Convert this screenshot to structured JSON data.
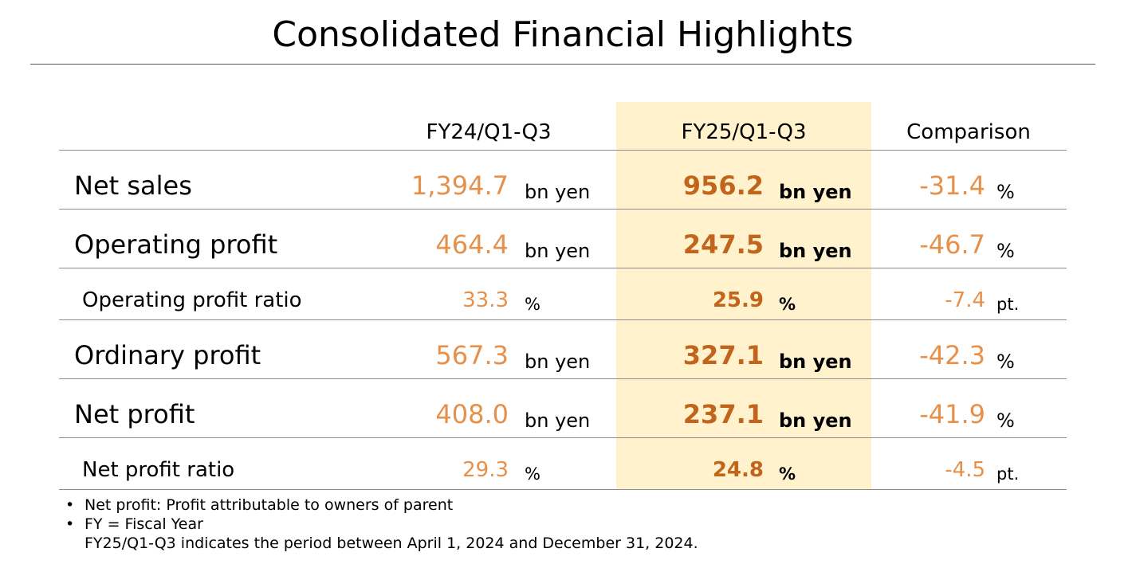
{
  "title": "Consolidated Financial Highlights",
  "columns": {
    "fy24": "FY24/Q1-Q3",
    "fy25": "FY25/Q1-Q3",
    "comparison": "Comparison"
  },
  "colors": {
    "value_orange": "#e6904a",
    "value_bold_orange": "#c0651b",
    "highlight_bg": "#fff2cc"
  },
  "rows": [
    {
      "label": "Net sales",
      "fy24": "1,394.7",
      "fy24_unit": "bn yen",
      "fy25": "956.2",
      "fy25_unit": "bn yen",
      "comparison": "-31.4",
      "comparison_unit": "%"
    },
    {
      "label": "Operating profit",
      "fy24": "464.4",
      "fy24_unit": "bn yen",
      "fy25": "247.5",
      "fy25_unit": "bn yen",
      "comparison": "-46.7",
      "comparison_unit": "%"
    },
    {
      "label": "Operating profit ratio",
      "fy24": "33.3",
      "fy24_unit": "%",
      "fy25": "25.9",
      "fy25_unit": "%",
      "comparison": "-7.4",
      "comparison_unit": "pt."
    },
    {
      "label": "Ordinary profit",
      "fy24": "567.3",
      "fy24_unit": "bn yen",
      "fy25": "327.1",
      "fy25_unit": "bn yen",
      "comparison": "-42.3",
      "comparison_unit": "%"
    },
    {
      "label": "Net profit",
      "fy24": "408.0",
      "fy24_unit": "bn yen",
      "fy25": "237.1",
      "fy25_unit": "bn yen",
      "comparison": "-41.9",
      "comparison_unit": "%"
    },
    {
      "label": "Net profit ratio",
      "fy24": "29.3",
      "fy24_unit": "%",
      "fy25": "24.8",
      "fy25_unit": "%",
      "comparison": "-4.5",
      "comparison_unit": "pt."
    }
  ],
  "notes": {
    "bullet": "•",
    "note1": "Net profit: Profit attributable to owners of parent",
    "note2": "FY = Fiscal Year",
    "note3": "FY25/Q1-Q3 indicates the period between April 1, 2024 and December 31, 2024."
  }
}
